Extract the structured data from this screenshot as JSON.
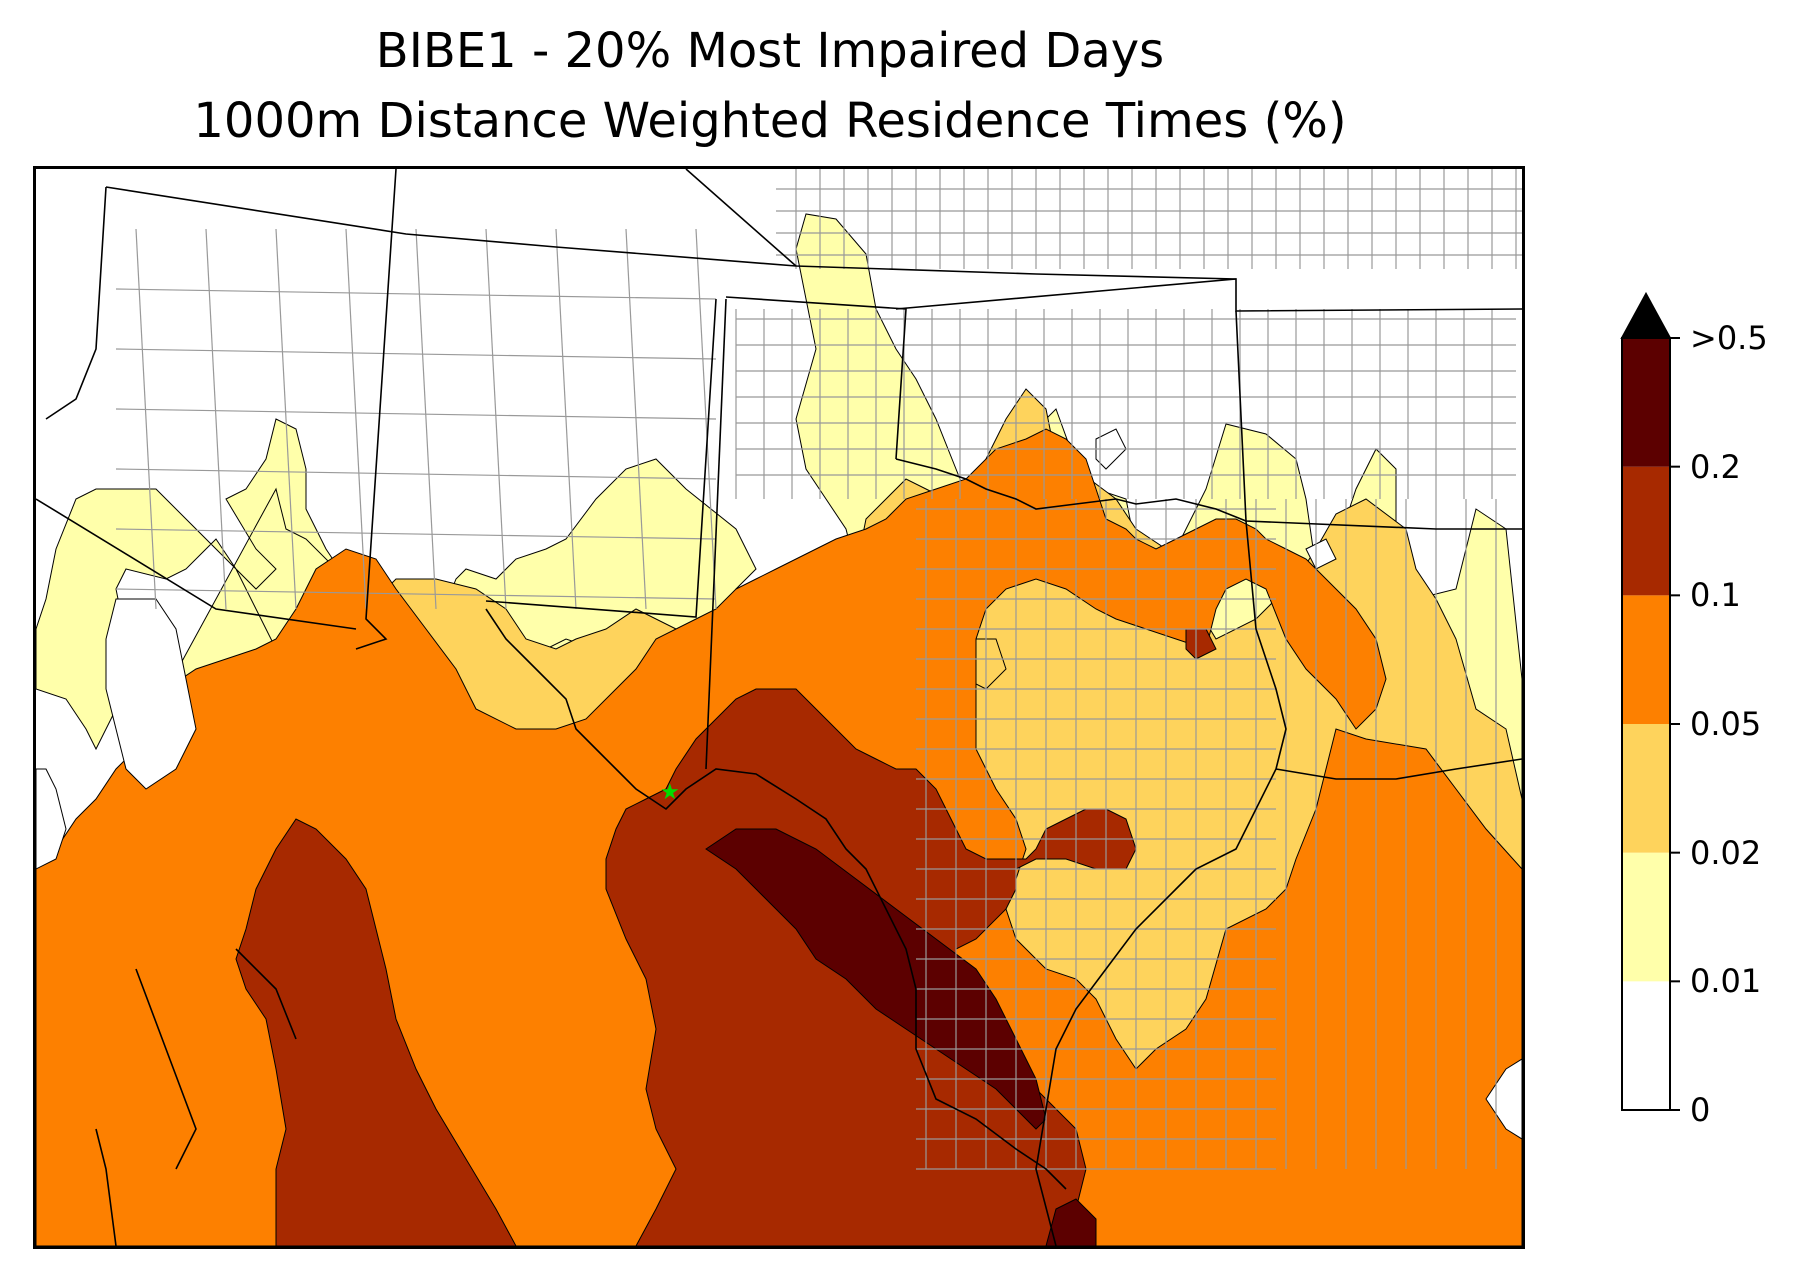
{
  "title": {
    "line1": "BIBE1 - 20% Most Impaired Days",
    "line2": "1000m Distance Weighted Residence Times (%)"
  },
  "colorbar": {
    "extend": "max",
    "levels": [
      {
        "label": "0",
        "color": "#ffffff"
      },
      {
        "label": "0.01",
        "color": "#ffffaa"
      },
      {
        "label": "0.02",
        "color": "#fed35c"
      },
      {
        "label": "0.05",
        "color": "#fd8000"
      },
      {
        "label": "0.1",
        "color": "#a72900"
      },
      {
        "label": "0.2",
        "color": "#5c0000"
      },
      {
        "label": ">0.5",
        "color": "#000000"
      }
    ]
  },
  "legend_note": "",
  "map": {
    "site_marker_color": "#00dd00",
    "boundary_color": "#000000",
    "county_color": "#999999"
  }
}
